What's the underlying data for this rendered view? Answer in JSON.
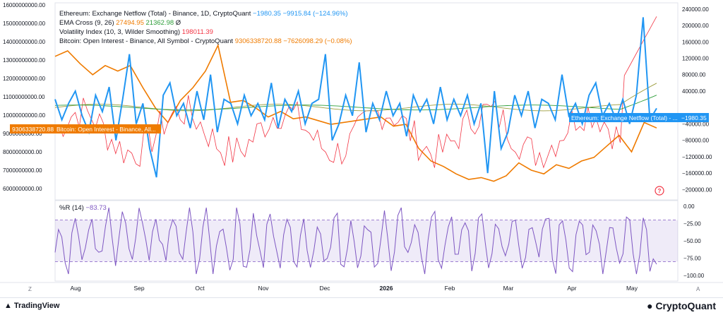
{
  "legend": {
    "netflow": {
      "name": "Ethereum: Exchange Netflow (Total) - Binance, 1D, CryptoQuant",
      "v1": "−1980.35",
      "v2": "−9915.84 (−124.96%)"
    },
    "ema": {
      "name": "EMA Cross (9, 26)",
      "v1": "27494.95",
      "v2": "21362.98",
      "v3": "Ø"
    },
    "vol": {
      "name": "Volatility Index (10, 3, Wilder Smoothing)",
      "v1": "198011.39"
    },
    "oi": {
      "name": "Bitcoin: Open Interest - Binance, All Symbol - CryptoQuant",
      "v1": "9306338720.88",
      "v2": "−7626098.29 (−0.08%)"
    },
    "wr": {
      "name": "%R (14)",
      "v1": "−83.73"
    }
  },
  "left_axis_ticks": [
    "16000000000.00",
    "15000000000.00",
    "14000000000.00",
    "13000000000.00",
    "12000000000.00",
    "11000000000.00",
    "10000000000.00",
    "9000000000.00",
    "8000000000.00",
    "7000000000.00",
    "6000000000.00"
  ],
  "right_axis_ticks": [
    "240000.00",
    "200000.00",
    "160000.00",
    "120000.00",
    "80000.00",
    "40000.00",
    "−40000.00",
    "−80000.00",
    "−120000.00",
    "−160000.00",
    "−200000.00"
  ],
  "wr_axis_ticks": [
    "0.00",
    "−25.00",
    "−50.00",
    "−75.00",
    "−100.00"
  ],
  "x_ticks": [
    "Aug",
    "Sep",
    "Oct",
    "Nov",
    "Dec",
    "2026",
    "Feb",
    "Mar",
    "Apr",
    "May"
  ],
  "price_labels": {
    "oi": "9306338720.88",
    "oi_name": "Bitcoin: Open Interest - Binance, All...",
    "netflow_name": "Ethereum: Exchange Netflow (Total) - ...",
    "netflow": "−1980.35"
  },
  "buttons": {
    "z": "Z",
    "a": "A"
  },
  "footer": {
    "tv": "TradingView",
    "cq": "CryptoQuant"
  },
  "colors": {
    "netflow": "#2196f3",
    "oi": "#ef7b00",
    "vol": "#f23645",
    "wr": "#7e57c2",
    "ema": "#9c9c3c"
  },
  "chart_data": {
    "type": "line",
    "x_range": [
      "2025-07-20",
      "2026-05-16"
    ],
    "series": [
      {
        "name": "Ethereum: Exchange Netflow (Total) - Binance",
        "axis": "right",
        "last": -1980.35,
        "approx_values": [
          20000,
          -30000,
          10000,
          40000,
          -20000,
          -60000,
          30000,
          -10000,
          50000,
          -80000,
          20000,
          130000,
          -40000,
          10000,
          -100000,
          -170000,
          30000,
          60000,
          -20000,
          10000,
          -50000,
          40000,
          -30000,
          80000,
          -60000,
          20000,
          10000,
          -40000,
          30000,
          -20000,
          10000,
          -30000,
          60000,
          -50000,
          20000,
          -10000,
          40000,
          -40000,
          10000,
          20000,
          130000,
          -80000,
          -40000,
          30000,
          -20000,
          110000,
          -60000,
          10000,
          -30000,
          40000,
          -20000,
          10000,
          -70000,
          30000,
          -10000,
          20000,
          -40000,
          50000,
          -30000,
          20000,
          -20000,
          30000,
          -40000,
          10000,
          -160000,
          40000,
          -100000,
          -60000,
          30000,
          -20000,
          40000,
          -50000,
          20000,
          10000,
          -30000,
          80000,
          -20000,
          10000,
          -40000,
          30000,
          60000,
          -20000,
          10000,
          -30000,
          20000,
          -40000,
          30000,
          220000,
          -30000,
          -1980
        ]
      },
      {
        "name": "Bitcoin: Open Interest - Binance",
        "axis": "left",
        "last": 9306338720.88,
        "approx_values": [
          13200000000,
          13500000000,
          12800000000,
          12200000000,
          12700000000,
          12400000000,
          12700000000,
          11500000000,
          10400000000,
          9600000000,
          10800000000,
          11500000000,
          12400000000,
          13800000000,
          10700000000,
          10800000000,
          10400000000,
          9900000000,
          10200000000,
          9800000000,
          9900000000,
          9700000000,
          9500000000,
          9600000000,
          9700000000,
          9800000000,
          9900000000,
          9400000000,
          9500000000,
          8200000000,
          7500000000,
          7200000000,
          6800000000,
          6500000000,
          6600000000,
          6400000000,
          6700000000,
          7400000000,
          7000000000,
          6800000000,
          7300000000,
          7100000000,
          7500000000,
          7700000000,
          8300000000,
          8900000000,
          8000000000,
          9600000000,
          9300000000
        ]
      },
      {
        "name": "Volatility Index (10, 3, Wilder Smoothing)",
        "axis": "right",
        "last": 198011.39
      },
      {
        "name": "%R (14)",
        "pane": "lower",
        "last": -83.73
      }
    ],
    "left_ylim": [
      5500000000,
      16000000000
    ],
    "right_ylim": [
      -220000,
      250000
    ],
    "wr_ylim": [
      -100,
      0
    ],
    "wr_band": [
      -80,
      -20
    ]
  }
}
